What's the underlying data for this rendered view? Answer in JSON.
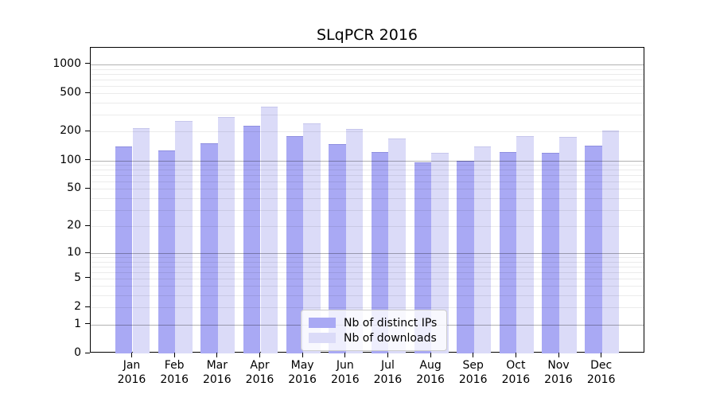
{
  "chart_data": {
    "type": "bar",
    "title": "SLqPCR 2016",
    "categories": [
      "Jan",
      "Feb",
      "Mar",
      "Apr",
      "May",
      "Jun",
      "Jul",
      "Aug",
      "Sep",
      "Oct",
      "Nov",
      "Dec"
    ],
    "x_year": "2016",
    "series": [
      {
        "name": "Nb of distinct IPs",
        "color": "#a9a9f4",
        "edge_color": "#8f8fe0",
        "values": [
          140,
          128,
          150,
          230,
          180,
          149,
          122,
          95,
          100,
          122,
          121,
          143
        ]
      },
      {
        "name": "Nb of downloads",
        "color": "#dbdbf8",
        "edge_color": "#c6c6ec",
        "values": [
          216,
          258,
          284,
          365,
          245,
          215,
          170,
          120,
          140,
          180,
          176,
          205
        ]
      }
    ],
    "y_axis": {
      "scale": "log10(1+x)",
      "ticks": [
        "1000",
        "500",
        "200",
        "100",
        "50",
        "20",
        "10",
        "5",
        "2",
        "1",
        "0"
      ],
      "tick_values": [
        1000,
        500,
        200,
        100,
        50,
        20,
        10,
        5,
        2,
        1,
        0
      ],
      "major_gridlines": [
        1,
        10,
        100,
        1000
      ],
      "minor_gridlines": [
        2,
        3,
        4,
        5,
        6,
        7,
        8,
        9,
        20,
        30,
        40,
        50,
        60,
        70,
        80,
        90,
        200,
        300,
        400,
        500,
        600,
        700,
        800,
        900
      ],
      "ylim": [
        0,
        1490
      ]
    },
    "xlabel": "",
    "ylabel": "",
    "grid": "horizontal",
    "legend": {
      "position": "lower center",
      "labels": [
        "Nb of distinct IPs",
        "Nb of downloads"
      ]
    },
    "colors": {
      "background": "#ffffff",
      "spine": "#000000",
      "text": "#000000",
      "major_grid": "rgba(0,0,0,0.30)",
      "minor_grid": "rgba(0,0,0,0.08)"
    }
  }
}
